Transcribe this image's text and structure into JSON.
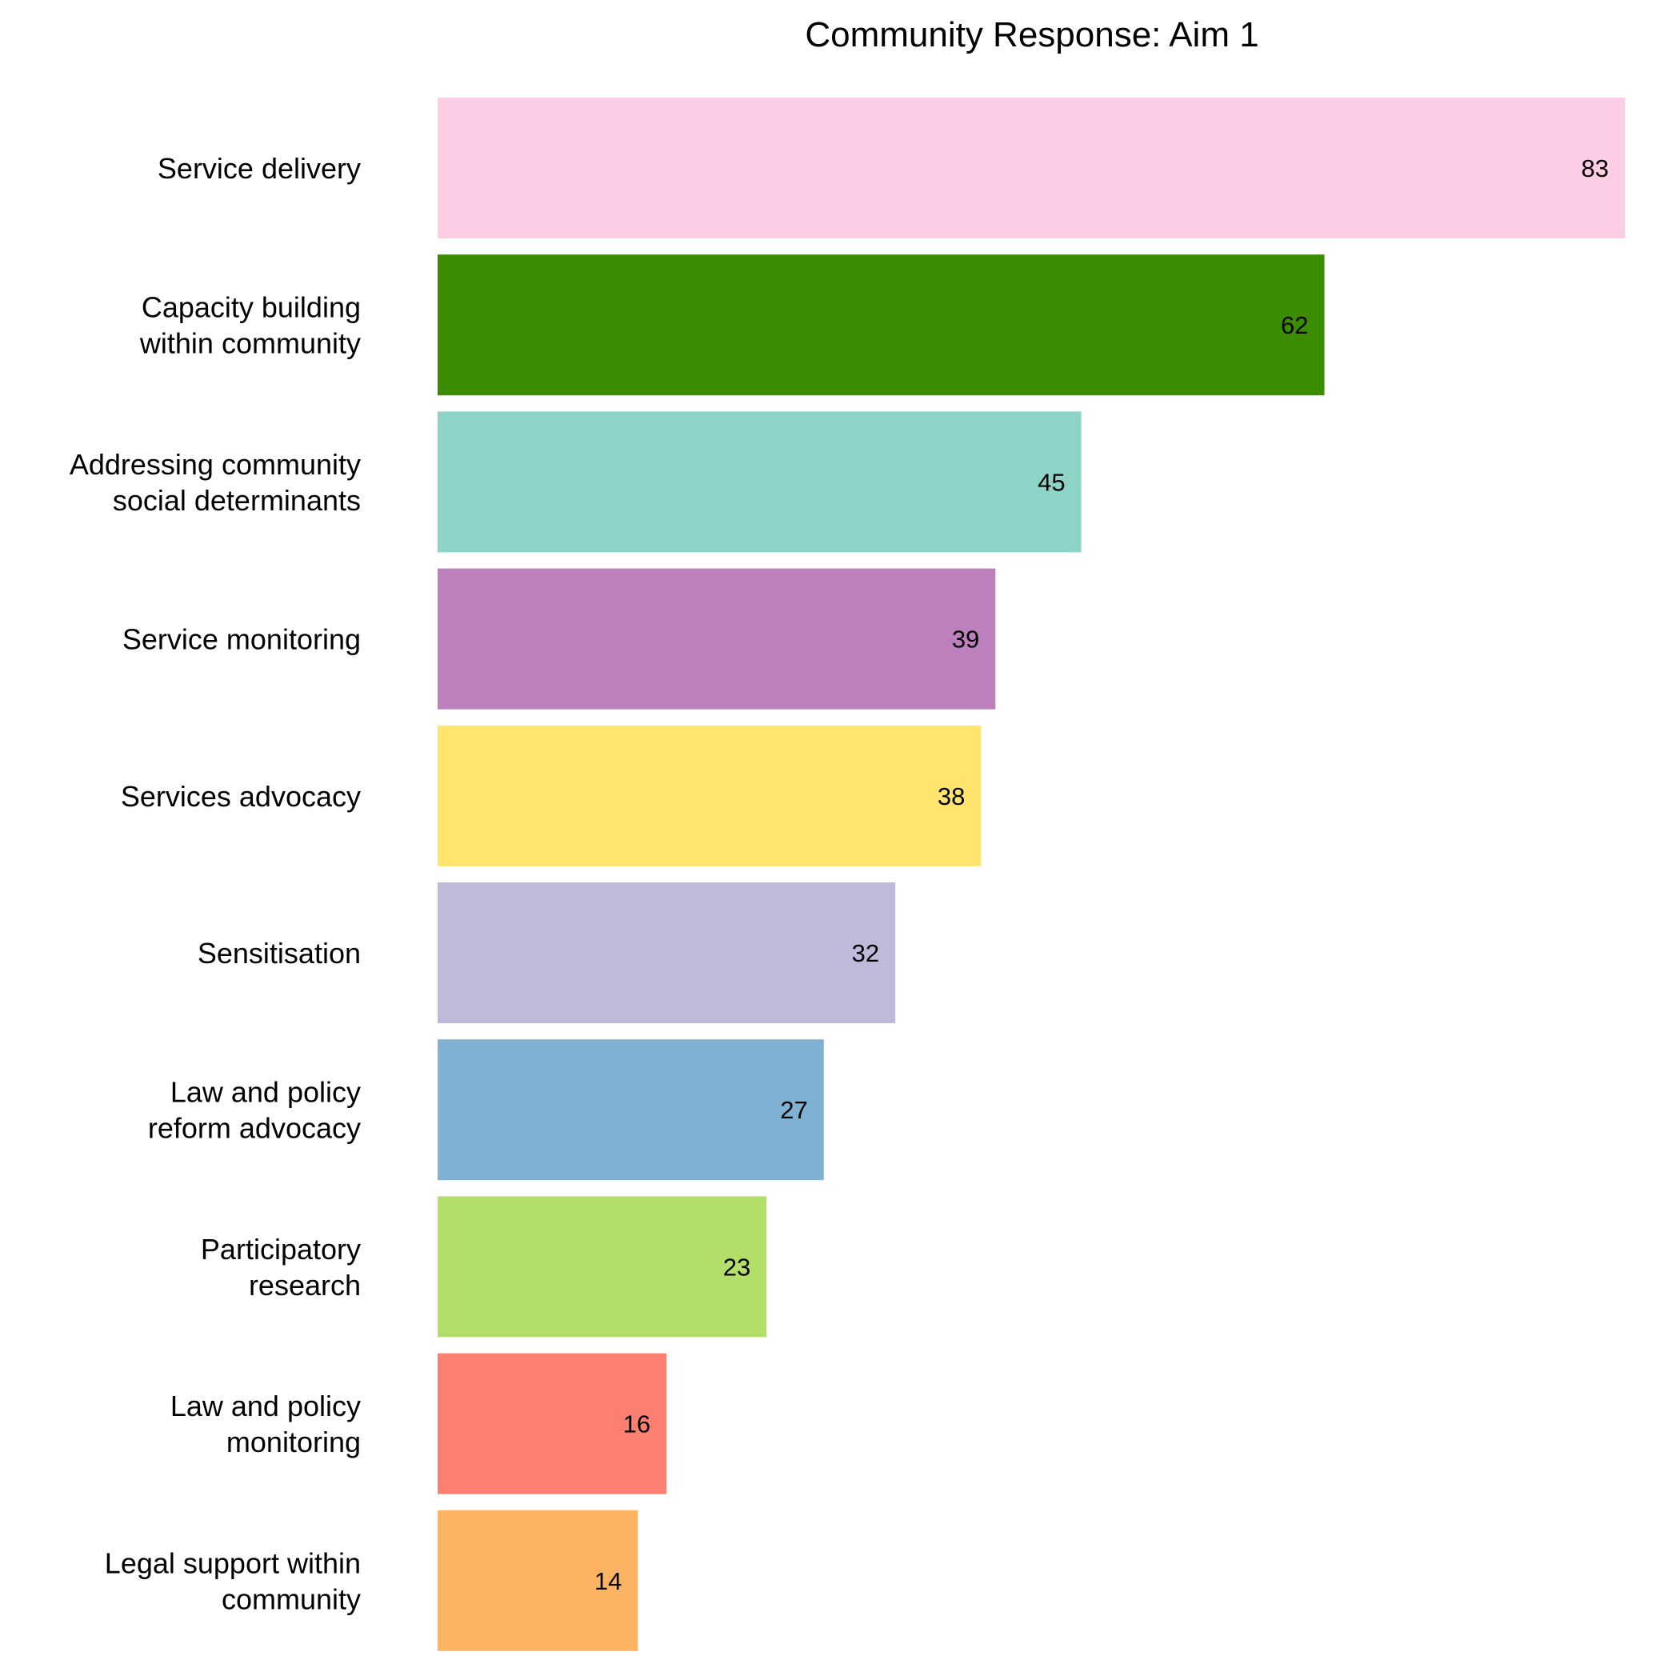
{
  "chart_data": {
    "type": "bar",
    "orientation": "horizontal",
    "title": "Community Response: Aim 1",
    "xlabel": "",
    "ylabel": "",
    "grid": false,
    "legend": "none",
    "xlim": [
      0,
      83
    ],
    "categories": [
      "Service delivery",
      "Capacity building within community",
      "Addressing community social determinants",
      "Service monitoring",
      "Services advocacy",
      "Sensitisation",
      "Law and policy reform advocacy",
      "Participatory research",
      "Law and policy monitoring",
      "Legal support within community"
    ],
    "category_lines": [
      [
        "Service delivery"
      ],
      [
        "Capacity building",
        "within community"
      ],
      [
        "Addressing community",
        "social determinants"
      ],
      [
        "Service monitoring"
      ],
      [
        "Services advocacy"
      ],
      [
        "Sensitisation"
      ],
      [
        "Law and policy",
        "reform advocacy"
      ],
      [
        "Participatory",
        "research"
      ],
      [
        "Law and policy",
        "monitoring"
      ],
      [
        "Legal support within",
        "community"
      ]
    ],
    "values": [
      83,
      62,
      45,
      39,
      38,
      32,
      27,
      23,
      16,
      14
    ],
    "data_labels": [
      "83",
      "62",
      "45",
      "39",
      "38",
      "32",
      "27",
      "23",
      "16",
      "14"
    ],
    "colors": [
      "#FDCCE5",
      "#3B8C00",
      "#8DD3C7",
      "#BC80BD",
      "#FFE46E",
      "#BEBADA",
      "#80B1D3",
      "#B3DE69",
      "#FB8072",
      "#FDB462"
    ]
  }
}
